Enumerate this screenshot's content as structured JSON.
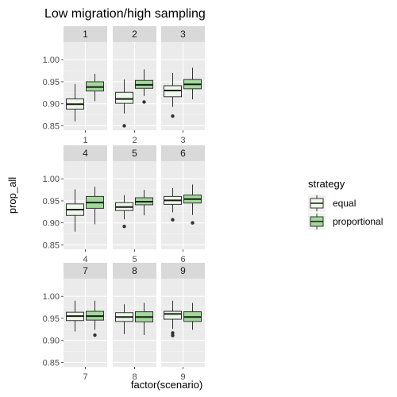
{
  "chart_data": {
    "type": "boxplot",
    "title": "Low migration/high sampling",
    "xlabel": "factor(scenario)",
    "ylabel": "prop_all",
    "ylim": [
      0.84,
      1.04
    ],
    "y_ticks": [
      0.85,
      0.9,
      0.95,
      1.0
    ],
    "y_tick_labels": [
      "0.85",
      "0.90",
      "0.95",
      "1.00"
    ],
    "facet_layout": "3x3",
    "grid": true,
    "legend": {
      "title": "strategy",
      "placement": "right",
      "entries": [
        {
          "name": "equal",
          "color": "#edf8e9"
        },
        {
          "name": "proportional",
          "color": "#a1d99b"
        }
      ]
    },
    "panels": [
      {
        "strip": "1",
        "x_tick": "1",
        "boxes": [
          {
            "strategy": "equal",
            "whisker_low": 0.86,
            "q1": 0.888,
            "median": 0.899,
            "q3": 0.911,
            "whisker_high": 0.945,
            "outliers": []
          },
          {
            "strategy": "proportional",
            "whisker_low": 0.906,
            "q1": 0.929,
            "median": 0.938,
            "q3": 0.95,
            "whisker_high": 0.968,
            "outliers": []
          }
        ]
      },
      {
        "strip": "2",
        "x_tick": "2",
        "boxes": [
          {
            "strategy": "equal",
            "whisker_low": 0.878,
            "q1": 0.901,
            "median": 0.911,
            "q3": 0.926,
            "whisker_high": 0.955,
            "outliers": [
              0.85
            ]
          },
          {
            "strategy": "proportional",
            "whisker_low": 0.918,
            "q1": 0.935,
            "median": 0.943,
            "q3": 0.953,
            "whisker_high": 0.978,
            "outliers": [
              0.904
            ]
          }
        ]
      },
      {
        "strip": "3",
        "x_tick": "3",
        "boxes": [
          {
            "strategy": "equal",
            "whisker_low": 0.893,
            "q1": 0.916,
            "median": 0.93,
            "q3": 0.941,
            "whisker_high": 0.97,
            "outliers": [
              0.872
            ]
          },
          {
            "strategy": "proportional",
            "whisker_low": 0.91,
            "q1": 0.934,
            "median": 0.944,
            "q3": 0.955,
            "whisker_high": 0.982,
            "outliers": []
          }
        ]
      },
      {
        "strip": "4",
        "x_tick": "4",
        "boxes": [
          {
            "strategy": "equal",
            "whisker_low": 0.88,
            "q1": 0.917,
            "median": 0.93,
            "q3": 0.943,
            "whisker_high": 0.976,
            "outliers": []
          },
          {
            "strategy": "proportional",
            "whisker_low": 0.897,
            "q1": 0.933,
            "median": 0.946,
            "q3": 0.96,
            "whisker_high": 0.982,
            "outliers": []
          }
        ]
      },
      {
        "strip": "5",
        "x_tick": "5",
        "boxes": [
          {
            "strategy": "equal",
            "whisker_low": 0.908,
            "q1": 0.928,
            "median": 0.936,
            "q3": 0.946,
            "whisker_high": 0.963,
            "outliers": [
              0.892
            ]
          },
          {
            "strategy": "proportional",
            "whisker_low": 0.917,
            "q1": 0.941,
            "median": 0.948,
            "q3": 0.957,
            "whisker_high": 0.975,
            "outliers": []
          }
        ]
      },
      {
        "strip": "6",
        "x_tick": "6",
        "boxes": [
          {
            "strategy": "equal",
            "whisker_low": 0.924,
            "q1": 0.942,
            "median": 0.951,
            "q3": 0.96,
            "whisker_high": 0.979,
            "outliers": [
              0.907
            ]
          },
          {
            "strategy": "proportional",
            "whisker_low": 0.918,
            "q1": 0.945,
            "median": 0.954,
            "q3": 0.963,
            "whisker_high": 0.987,
            "outliers": [
              0.9
            ]
          }
        ]
      },
      {
        "strip": "7",
        "x_tick": "7",
        "boxes": [
          {
            "strategy": "equal",
            "whisker_low": 0.92,
            "q1": 0.945,
            "median": 0.955,
            "q3": 0.964,
            "whisker_high": 0.99,
            "outliers": []
          },
          {
            "strategy": "proportional",
            "whisker_low": 0.924,
            "q1": 0.946,
            "median": 0.955,
            "q3": 0.966,
            "whisker_high": 0.99,
            "outliers": [
              0.912
            ]
          }
        ]
      },
      {
        "strip": "8",
        "x_tick": "8",
        "boxes": [
          {
            "strategy": "equal",
            "whisker_low": 0.914,
            "q1": 0.943,
            "median": 0.953,
            "q3": 0.963,
            "whisker_high": 0.982,
            "outliers": []
          },
          {
            "strategy": "proportional",
            "whisker_low": 0.912,
            "q1": 0.942,
            "median": 0.953,
            "q3": 0.965,
            "whisker_high": 0.985,
            "outliers": []
          }
        ]
      },
      {
        "strip": "9",
        "x_tick": "9",
        "boxes": [
          {
            "strategy": "equal",
            "whisker_low": 0.926,
            "q1": 0.948,
            "median": 0.96,
            "q3": 0.966,
            "whisker_high": 0.99,
            "outliers": [
              0.917,
              0.911
            ]
          },
          {
            "strategy": "proportional",
            "whisker_low": 0.924,
            "q1": 0.943,
            "median": 0.953,
            "q3": 0.965,
            "whisker_high": 0.985,
            "outliers": []
          }
        ]
      }
    ]
  }
}
